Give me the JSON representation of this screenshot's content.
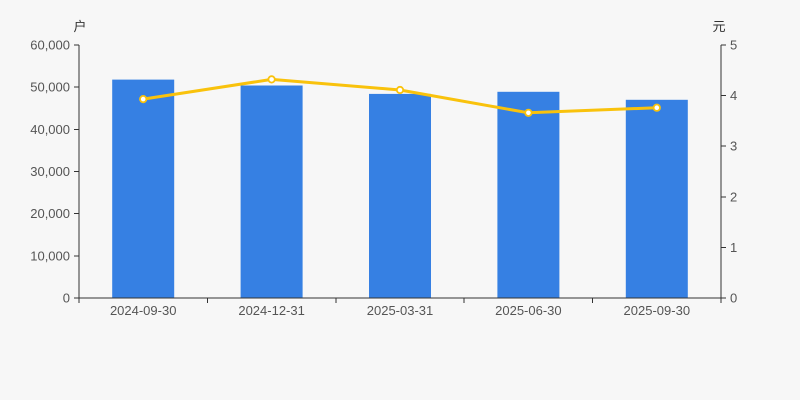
{
  "page": {
    "background": "#f7f7f7"
  },
  "chart_data": {
    "type": "combo",
    "categories": [
      "2024-09-30",
      "2024-12-31",
      "2025-03-31",
      "2025-06-30",
      "2025-09-30"
    ],
    "series": [
      {
        "name": "bar-series",
        "type": "bar",
        "y_axis": "left",
        "color": "#3680E3",
        "values": [
          51800,
          50400,
          48400,
          48900,
          47000
        ]
      },
      {
        "name": "line-series",
        "type": "line",
        "y_axis": "right",
        "color": "#F9C20C",
        "marker_fill": "#FFFFFF",
        "values": [
          3.93,
          4.32,
          4.11,
          3.66,
          3.76
        ]
      }
    ],
    "left_axis": {
      "title": "户",
      "min": 0,
      "max": 60000,
      "tick_labels": [
        "0",
        "10,000",
        "20,000",
        "30,000",
        "40,000",
        "50,000",
        "60,000"
      ]
    },
    "right_axis": {
      "title": "元",
      "min": 0,
      "max": 5,
      "tick_labels": [
        "0",
        "1",
        "2",
        "3",
        "4",
        "5"
      ]
    },
    "grid": false,
    "legend": false,
    "axis_color": "#333333",
    "label_color": "#555555"
  }
}
